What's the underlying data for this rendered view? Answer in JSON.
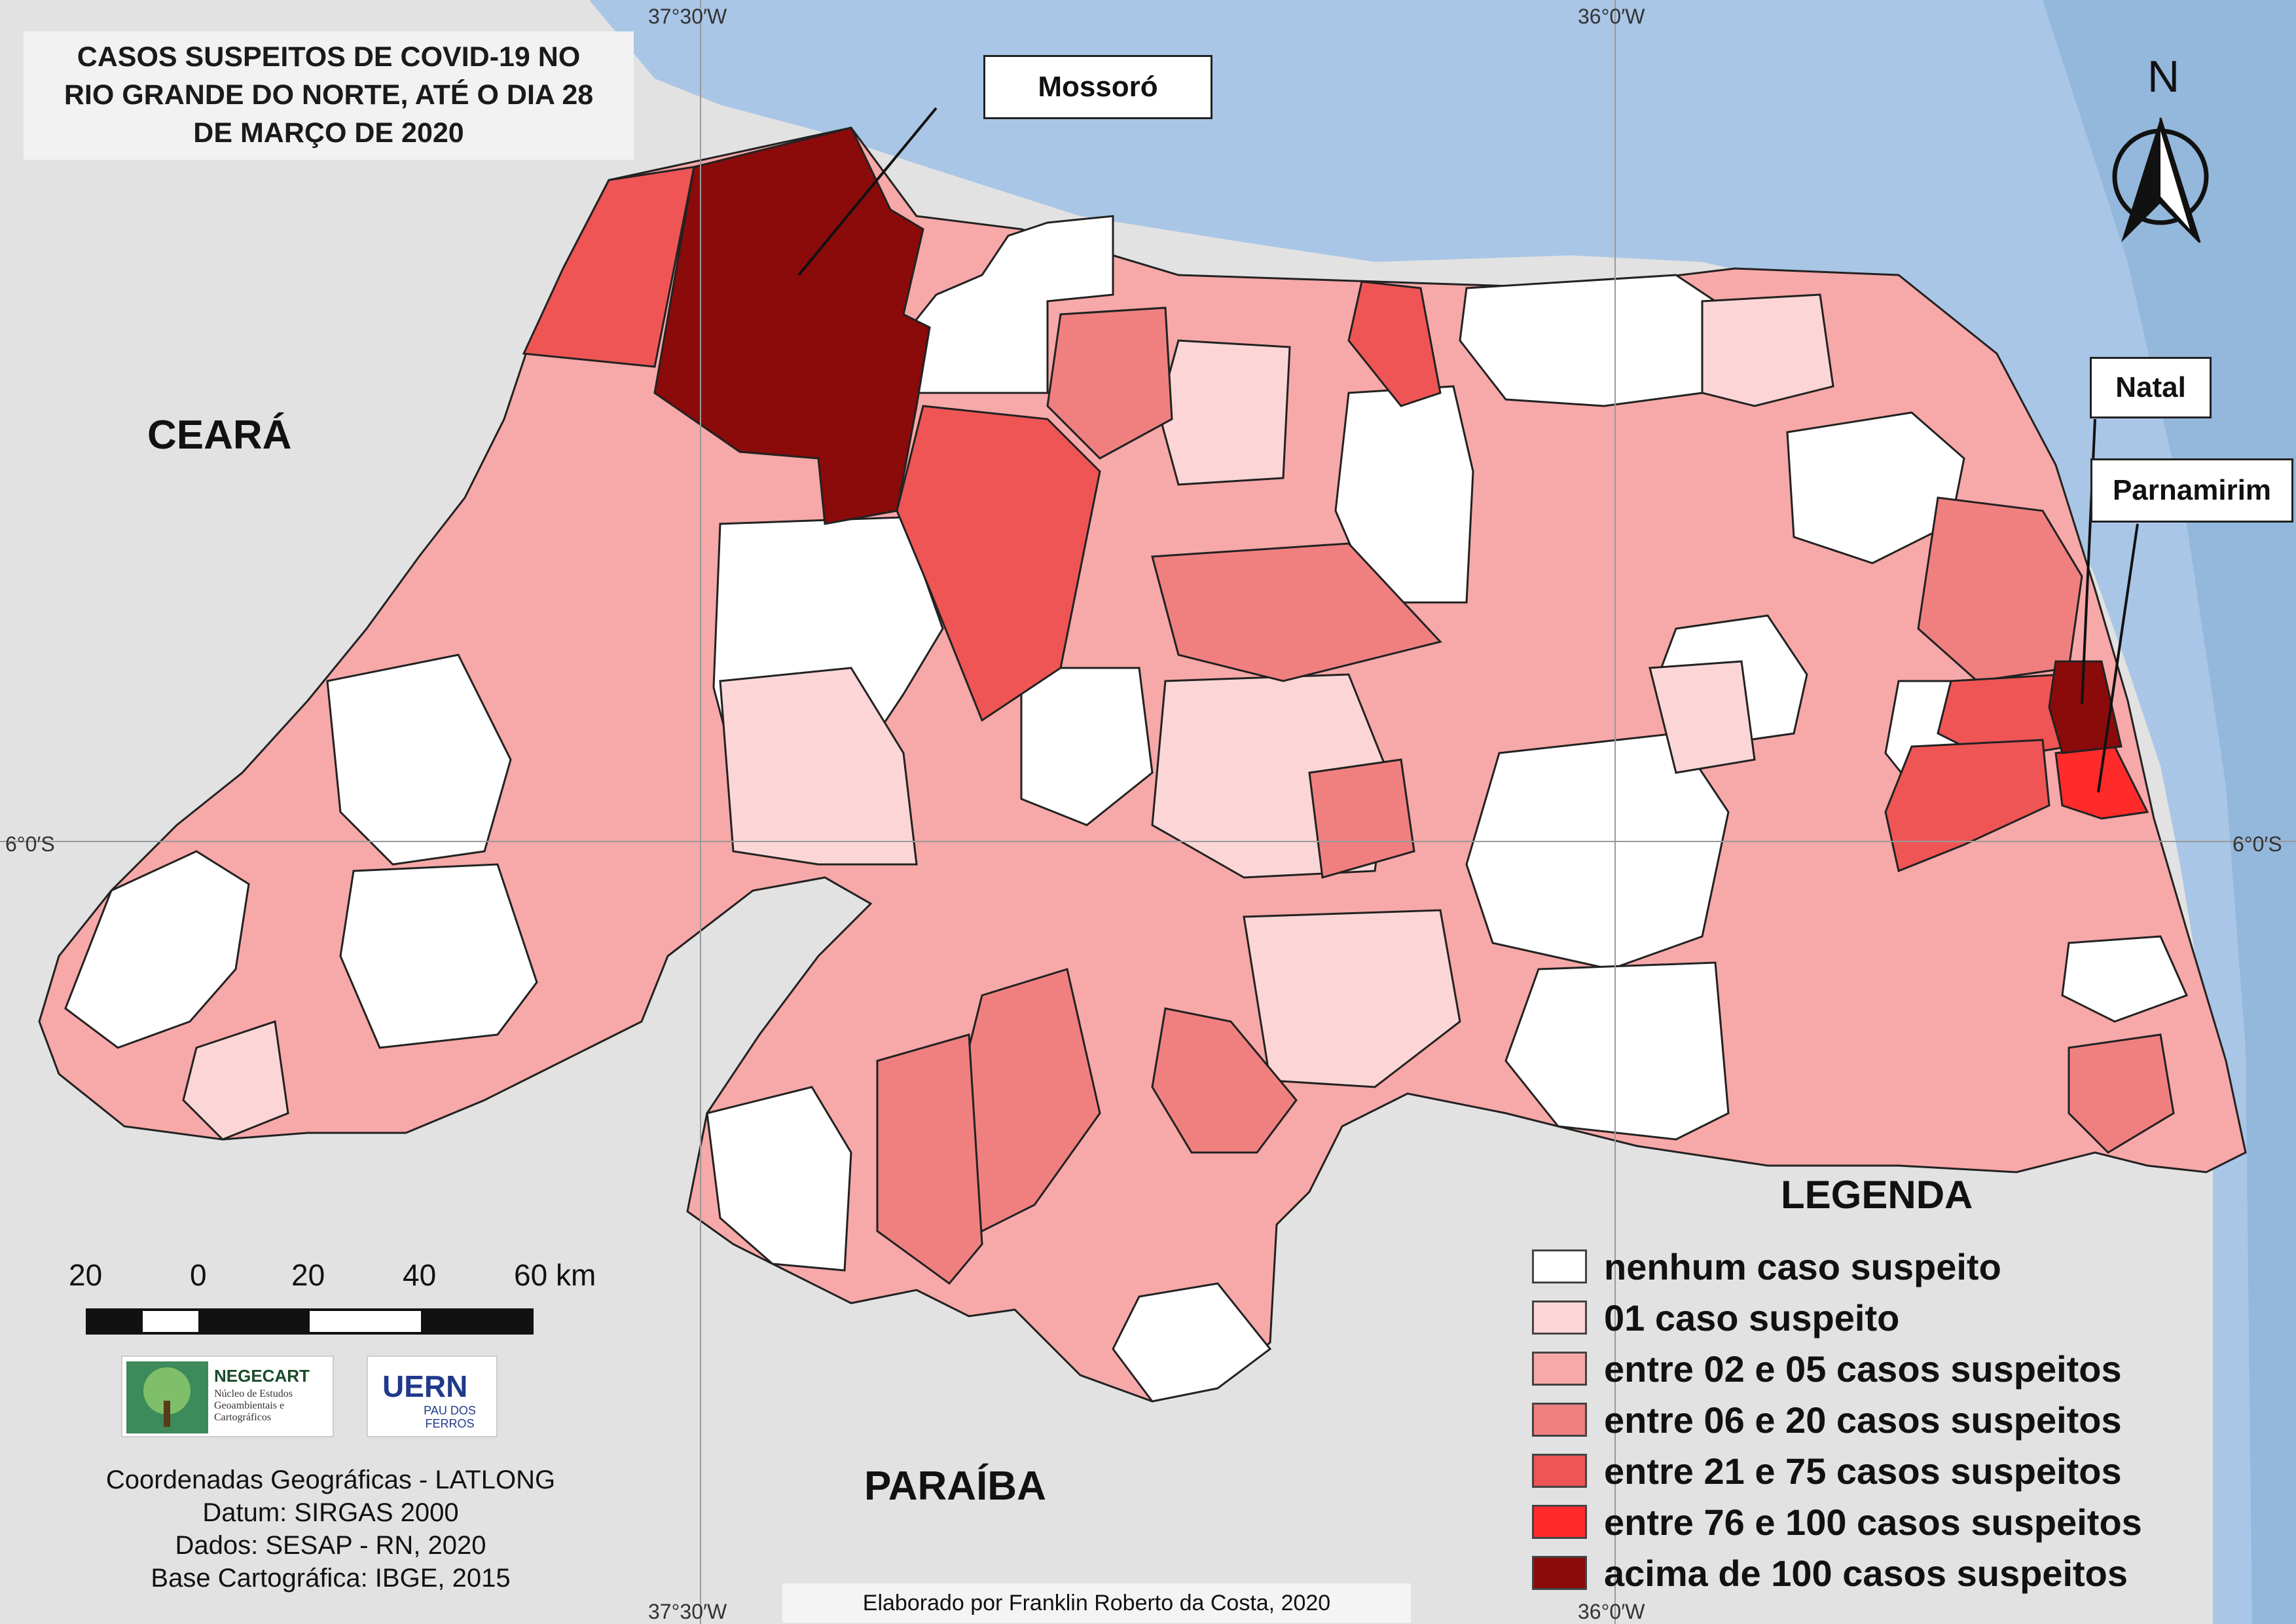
{
  "title": {
    "line1": "CASOS SUSPEITOS DE COVID-19 NO",
    "line2": "RIO GRANDE DO NORTE, ATÉ O DIA 28",
    "line3": "DE MARÇO DE 2020"
  },
  "graticule": {
    "lon_left": "37°30′W",
    "lon_right": "36°0′W",
    "lat": "6°0′S"
  },
  "regions": {
    "ceara": "CEARÁ",
    "paraiba": "PARAÍBA"
  },
  "cities": {
    "mossoro": "Mossoró",
    "natal": "Natal",
    "parnamirim": "Parnamirim"
  },
  "north_arrow": {
    "label": "N",
    "icon": "north-arrow-icon"
  },
  "legend": {
    "title": "LEGENDA",
    "items": [
      {
        "label": "nenhum caso suspeito",
        "color": "#ffffff"
      },
      {
        "label": "01 caso suspeito",
        "color": "#fcd6d6"
      },
      {
        "label": "entre 02 e 05 casos suspeitos",
        "color": "#f7a8a8"
      },
      {
        "label": "entre 06 e 20 casos suspeitos",
        "color": "#f08080"
      },
      {
        "label": "entre 21 e 75 casos suspeitos",
        "color": "#ef5555"
      },
      {
        "label": "entre 76 e 100 casos suspeitos",
        "color": "#ff2a2a"
      },
      {
        "label": "acima de 100 casos suspeitos",
        "color": "#8b0a0a"
      }
    ]
  },
  "scale_bar": {
    "labels": [
      "20",
      "0",
      "20",
      "40",
      "60 km"
    ]
  },
  "logos": {
    "negecart": "NEGECART",
    "negecart_sub": "Núcleo de Estudos Geoambientais e Cartográficos",
    "uern": "UERN",
    "uern_sub": "PAU DOS FERROS"
  },
  "metadata": {
    "line1": "Coordenadas Geográficas - LATLONG",
    "line2": "Datum: SIRGAS 2000",
    "line3": "Dados: SESAP - RN, 2020",
    "line4": "Base Cartográfica: IBGE, 2015"
  },
  "credit": "Elaborado por Franklin Roberto da Costa, 2020",
  "colors": {
    "ocean": "#a9c6e6",
    "land_outside": "#e2e2e2",
    "state_border": "#222222"
  }
}
